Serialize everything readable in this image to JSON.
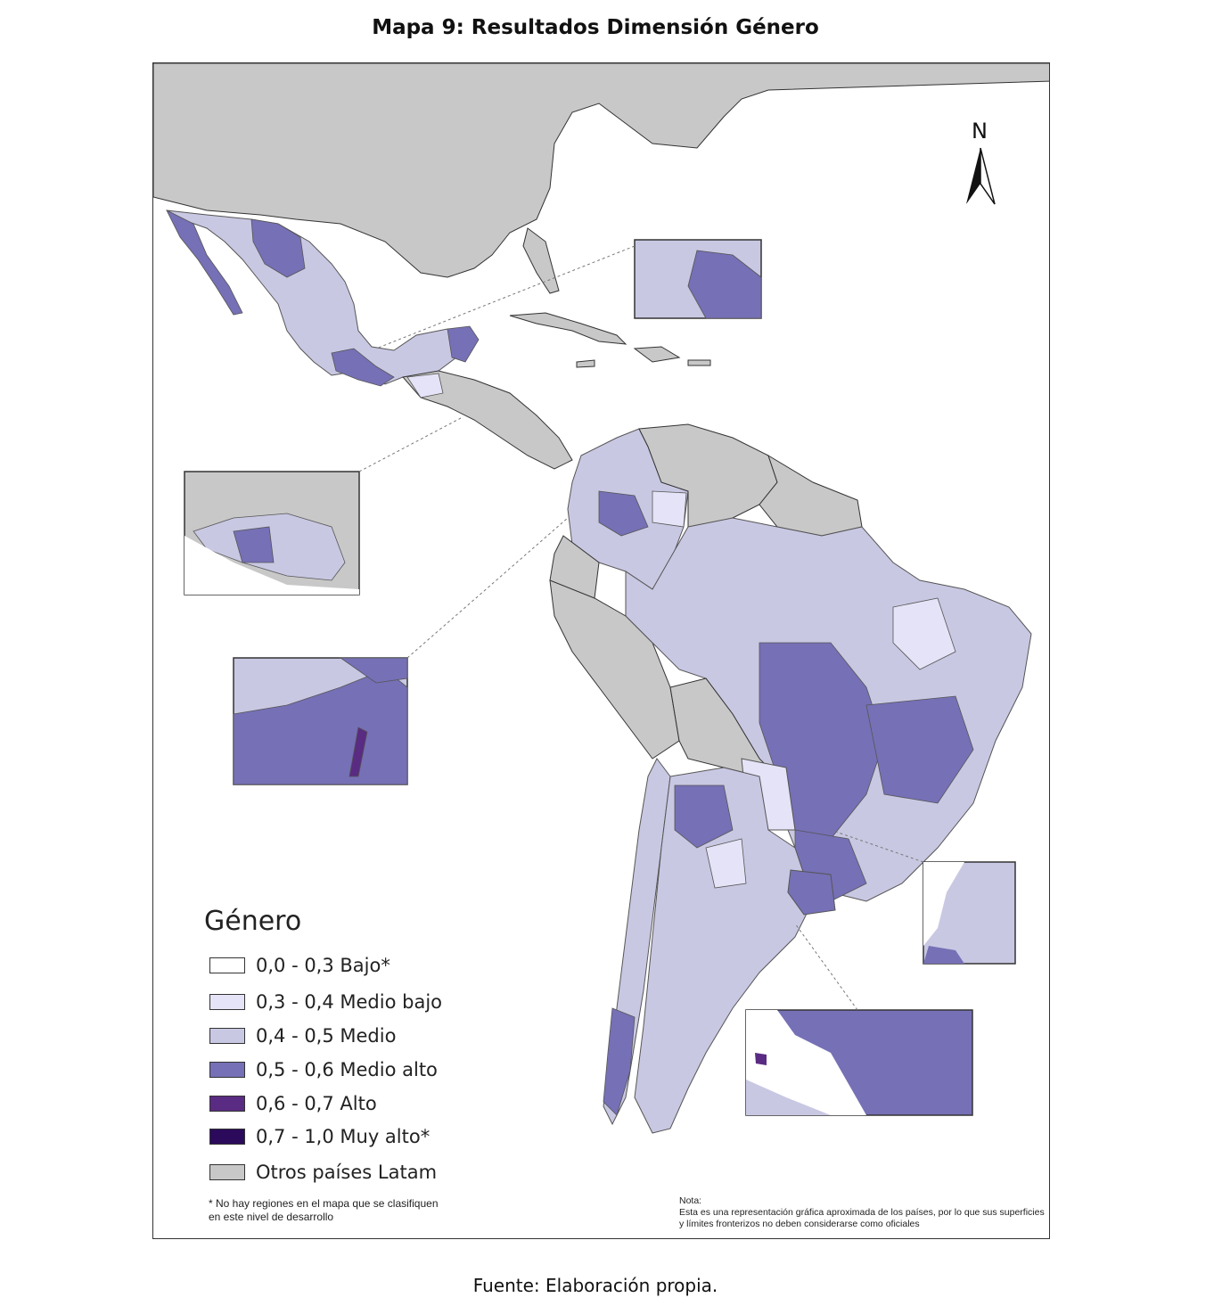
{
  "title": "Mapa 9: Resultados Dimensión Género",
  "source": "Fuente: Elaboración propia.",
  "north_arrow": {
    "label": "N",
    "icon": "north-arrow-icon"
  },
  "legend": {
    "title": "Género",
    "items": [
      {
        "label": "0,0 - 0,3 Bajo*",
        "color": "#ffffff"
      },
      {
        "label": "0,3 - 0,4 Medio bajo",
        "color": "#e4e3f7"
      },
      {
        "label": "0,4 - 0,5 Medio",
        "color": "#c9c8e3"
      },
      {
        "label": "0,5 - 0,6 Medio alto",
        "color": "#7670b6"
      },
      {
        "label": "0,6 - 0,7 Alto",
        "color": "#5a2b82"
      },
      {
        "label": "0,7 - 1,0 Muy alto*",
        "color": "#2b0a5c"
      },
      {
        "label": "Otros países Latam",
        "color": "#c8c8c8"
      }
    ]
  },
  "footnote": "* No hay regiones en el mapa que se clasifiquen en este nivel de desarrollo",
  "note": {
    "heading": "Nota:",
    "text": "Esta es una representación gráfica aproximada de los países, por lo que sus superficies y límites fronterizos no deben considerarse como oficiales"
  }
}
